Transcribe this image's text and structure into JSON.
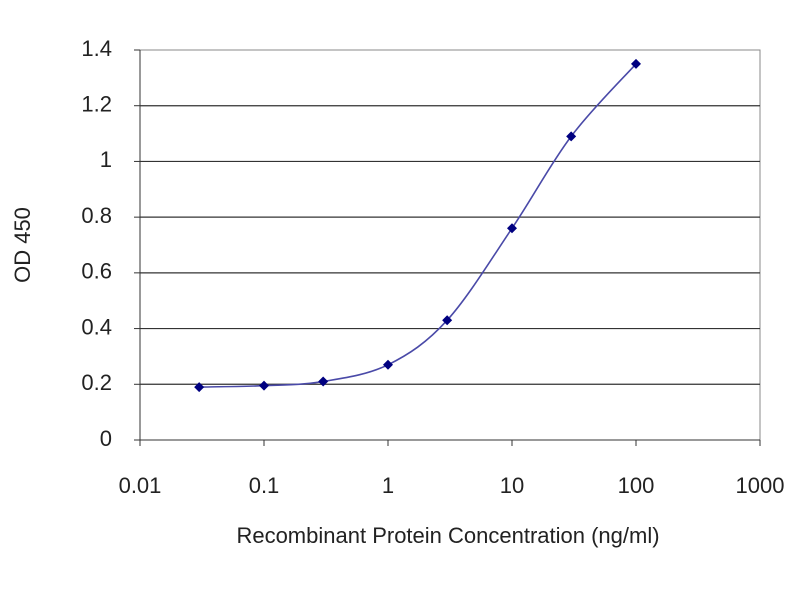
{
  "chart_data": {
    "type": "line",
    "xlabel": "Recombinant Protein Concentration (ng/ml)",
    "ylabel": "OD 450",
    "x": [
      0.03,
      0.1,
      0.3,
      1,
      3,
      10,
      30,
      100
    ],
    "values": [
      0.19,
      0.195,
      0.21,
      0.27,
      0.43,
      0.76,
      1.09,
      1.35
    ],
    "color": "#000080",
    "line_color": "#4a4aa8",
    "xlim": [
      0.01,
      1000
    ],
    "xticks": [
      0.01,
      0.1,
      1,
      10,
      100,
      1000
    ],
    "ylim": [
      0,
      1.4
    ],
    "yticks": [
      0,
      0.2,
      0.4,
      0.6,
      0.8,
      1,
      1.2,
      1.4
    ],
    "x_log": true,
    "grid": true
  }
}
